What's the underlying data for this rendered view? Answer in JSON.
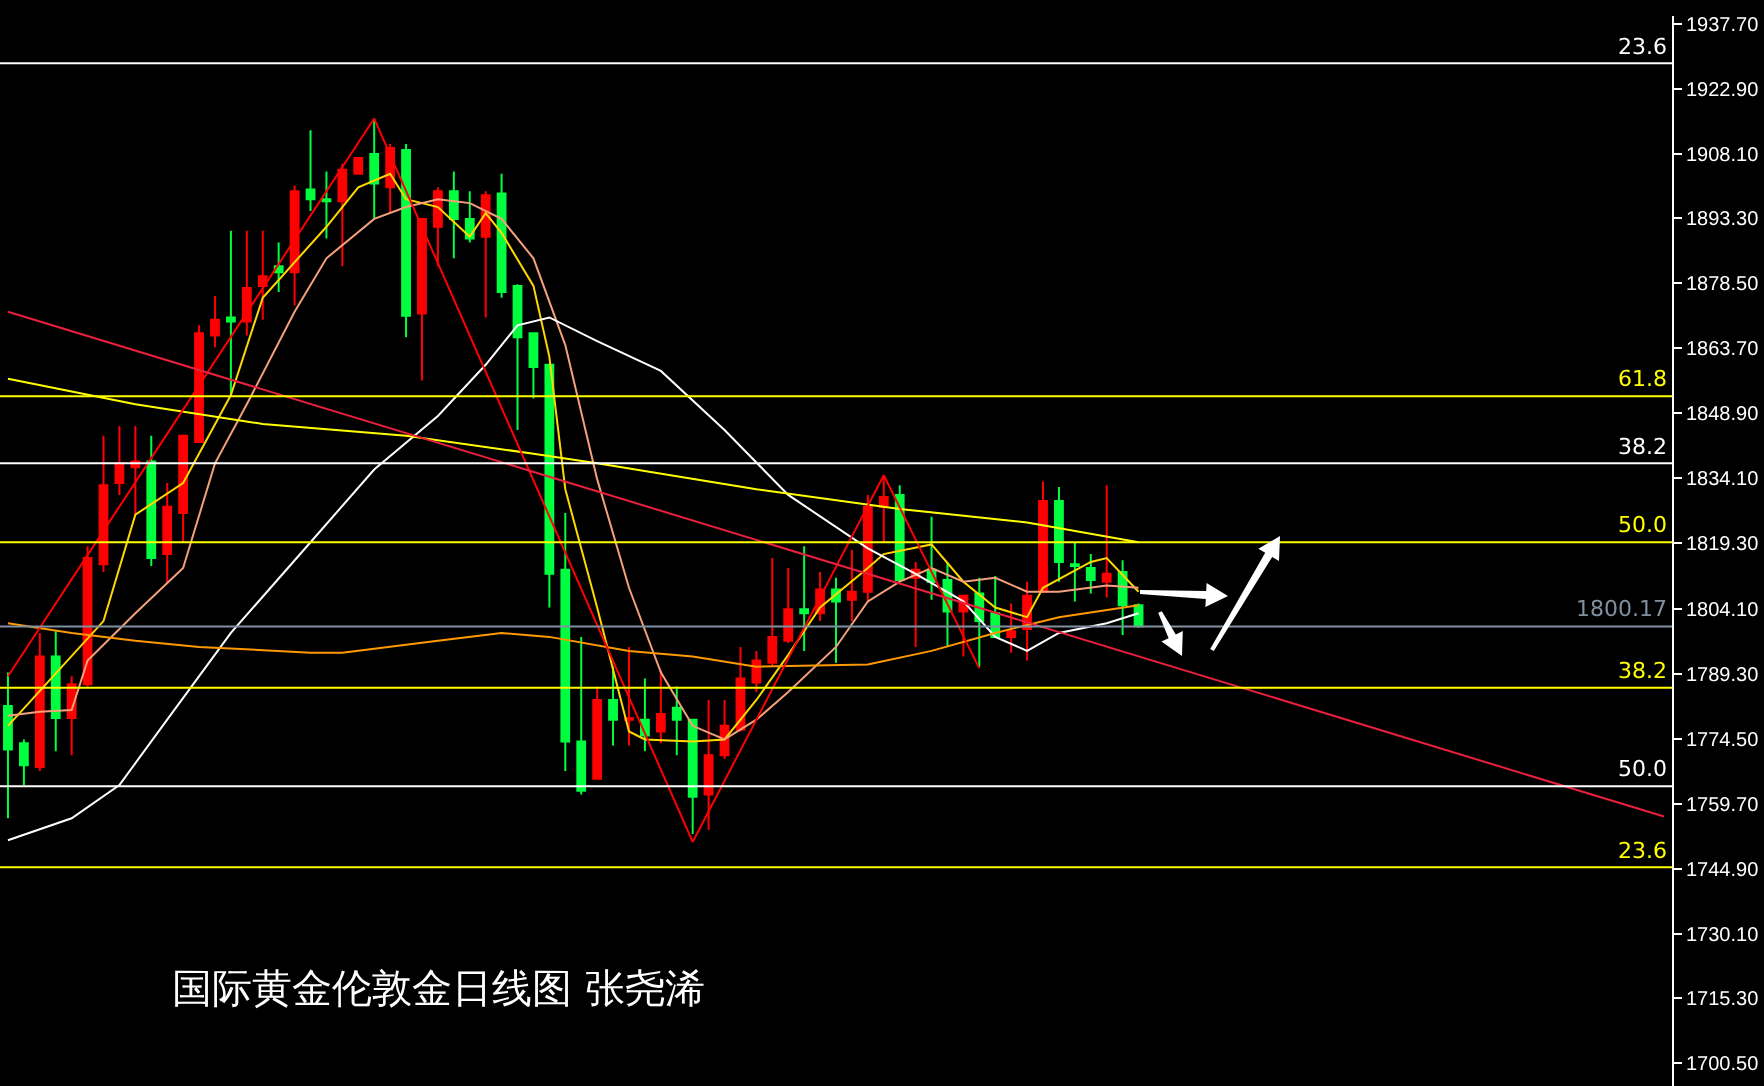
{
  "chart_data": {
    "type": "candlestick",
    "title": "国际黄金伦敦金日线图 张尧浠",
    "categories": [
      null,
      null,
      null,
      null,
      null,
      null,
      null,
      null,
      null,
      null,
      null,
      null,
      null,
      null,
      null,
      null,
      null,
      null,
      null,
      null,
      null,
      null,
      null,
      null,
      null,
      null,
      null,
      null,
      null,
      null,
      null,
      null,
      null,
      null,
      null,
      null,
      null,
      null,
      null,
      null,
      null,
      null,
      null,
      null,
      null,
      null,
      null,
      null,
      null,
      null,
      null,
      null,
      null,
      null,
      null,
      null,
      null,
      null,
      null,
      null,
      null,
      null,
      null,
      null,
      null,
      null,
      null,
      null,
      null,
      null,
      null,
      null,
      null,
      null,
      null,
      null,
      null,
      null,
      null,
      null,
      null,
      null,
      null,
      null,
      null,
      null,
      null,
      null,
      null,
      null,
      null,
      null,
      null,
      null,
      null,
      null,
      null,
      null,
      null,
      null,
      null,
      null,
      null,
      null,
      null
    ],
    "ohlc": [
      [
        1782.0,
        1789.7,
        1756.4,
        1772.1
      ],
      [
        1773.5,
        1774.4,
        1764.0,
        1768.5
      ],
      [
        1768.1,
        1798.7,
        1767.2,
        1793.3
      ],
      [
        1793.3,
        1799.1,
        1771.7,
        1779.3
      ],
      [
        1779.3,
        1788.8,
        1770.8,
        1787.0
      ],
      [
        1787.0,
        1818.5,
        1786.5,
        1815.8
      ],
      [
        1814.4,
        1843.7,
        1812.6,
        1832.4
      ],
      [
        1832.9,
        1845.9,
        1830.2,
        1837.4
      ],
      [
        1836.5,
        1845.9,
        1825.6,
        1837.8
      ],
      [
        1837.8,
        1843.7,
        1814.0,
        1815.8
      ],
      [
        1816.7,
        1832.9,
        1809.9,
        1827.5
      ],
      [
        1826.1,
        1843.7,
        1819.4,
        1843.7
      ],
      [
        1842.3,
        1868.9,
        1842.3,
        1867.1
      ],
      [
        1866.6,
        1875.6,
        1863.9,
        1870.2
      ],
      [
        1870.7,
        1890.5,
        1852.7,
        1869.8
      ],
      [
        1869.8,
        1890.5,
        1866.6,
        1877.4
      ],
      [
        1877.9,
        1890.5,
        1870.2,
        1880.1
      ],
      [
        1882.4,
        1887.8,
        1876.5,
        1881.0
      ],
      [
        1881.0,
        1900.8,
        1873.4,
        1899.5
      ],
      [
        1899.9,
        1913.4,
        1895.0,
        1897.7
      ],
      [
        1897.7,
        1904.0,
        1888.7,
        1897.2
      ],
      [
        1897.2,
        1905.8,
        1882.4,
        1904.4
      ],
      [
        1903.5,
        1907.1,
        1903.5,
        1907.1
      ],
      [
        1908.0,
        1916.1,
        1893.2,
        1901.3
      ],
      [
        1900.4,
        1910.3,
        1894.5,
        1909.4
      ],
      [
        1908.9,
        1910.3,
        1866.2,
        1871.1
      ],
      [
        1871.6,
        1893.2,
        1856.3,
        1893.2
      ],
      [
        1891.4,
        1900.4,
        1882.4,
        1899.5
      ],
      [
        1899.5,
        1904.0,
        1884.2,
        1893.2
      ],
      [
        1893.2,
        1899.5,
        1887.8,
        1888.7
      ],
      [
        1889.1,
        1899.5,
        1870.7,
        1898.6
      ],
      [
        1899.0,
        1903.5,
        1875.2,
        1876.5
      ],
      [
        1877.9,
        1878.3,
        1845.0,
        1866.2
      ],
      [
        1867.1,
        1867.1,
        1852.2,
        1859.4
      ],
      [
        1859.9,
        1859.9,
        1804.5,
        1812.2
      ],
      [
        1813.1,
        1826.1,
        1767.2,
        1773.9
      ],
      [
        1773.9,
        1797.8,
        1761.8,
        1762.7
      ],
      [
        1765.4,
        1786.5,
        1765.4,
        1783.4
      ],
      [
        1783.4,
        1791.0,
        1773.0,
        1778.9
      ],
      [
        1778.9,
        1795.5,
        1773.0,
        1779.3
      ],
      [
        1778.9,
        1788.3,
        1771.7,
        1775.3
      ],
      [
        1776.2,
        1790.1,
        1773.5,
        1780.2
      ],
      [
        1781.6,
        1786.5,
        1770.8,
        1778.9
      ],
      [
        1778.9,
        1778.9,
        1752.8,
        1761.3
      ],
      [
        1761.8,
        1783.4,
        1753.7,
        1770.8
      ],
      [
        1770.8,
        1783.4,
        1769.9,
        1777.5
      ],
      [
        1776.6,
        1795.5,
        1776.2,
        1788.3
      ],
      [
        1787.4,
        1794.6,
        1785.2,
        1792.4
      ],
      [
        1791.9,
        1815.8,
        1791.0,
        1797.8
      ],
      [
        1796.9,
        1813.5,
        1796.4,
        1804.1
      ],
      [
        1804.1,
        1818.5,
        1794.6,
        1803.2
      ],
      [
        1803.2,
        1812.6,
        1801.4,
        1808.6
      ],
      [
        1808.6,
        1811.3,
        1791.9,
        1805.9
      ],
      [
        1806.3,
        1817.6,
        1801.4,
        1808.1
      ],
      [
        1808.1,
        1830.2,
        1805.9,
        1827.5
      ],
      [
        1827.5,
        1834.7,
        1819.4,
        1829.7
      ],
      [
        1830.2,
        1832.4,
        1810.8,
        1810.8
      ],
      [
        1811.3,
        1814.9,
        1795.5,
        1813.1
      ],
      [
        1813.1,
        1825.2,
        1806.3,
        1810.4
      ],
      [
        1810.8,
        1814.9,
        1795.5,
        1803.6
      ],
      [
        1803.6,
        1807.2,
        1793.3,
        1807.2
      ],
      [
        1807.7,
        1811.3,
        1791.0,
        1801.4
      ],
      [
        1803.2,
        1811.7,
        1797.8,
        1797.8
      ],
      [
        1797.8,
        1805.4,
        1794.2,
        1799.1
      ],
      [
        1799.6,
        1810.4,
        1792.4,
        1807.2
      ],
      [
        1808.1,
        1833.3,
        1808.1,
        1828.8
      ],
      [
        1828.8,
        1832.0,
        1810.4,
        1814.9
      ],
      [
        1814.4,
        1819.4,
        1805.9,
        1814.0
      ],
      [
        1813.5,
        1816.7,
        1807.7,
        1810.8
      ],
      [
        1810.4,
        1832.4,
        1806.8,
        1812.2
      ],
      [
        1812.6,
        1815.3,
        1798.2,
        1805.0
      ],
      [
        1805.0,
        1805.4,
        1799.9,
        1800.2
      ],
      null,
      null,
      null,
      null,
      null,
      null,
      null,
      null,
      null,
      null,
      null,
      null,
      null,
      null,
      null,
      null,
      null,
      null,
      null,
      null,
      null,
      null,
      null,
      null,
      null,
      null,
      null,
      null,
      null,
      null,
      null,
      null,
      null
    ],
    "colors": [
      "#00ff40",
      "#00ff40",
      "#ff0000",
      "#00ff40",
      "#ff0000",
      "#ff0000",
      "#ff0000",
      "#ff0000",
      "#ff0000",
      "#00ff40",
      "#ff0000",
      "#ff0000",
      "#ff0000",
      "#ff0000",
      "#00ff40",
      "#ff0000",
      "#ff0000",
      "#00ff40",
      "#ff0000",
      "#00ff40",
      "#00ff40",
      "#ff0000",
      "#ff0000",
      "#00ff40",
      "#ff0000",
      "#00ff40",
      "#ff0000",
      "#ff0000",
      "#00ff40",
      "#00ff40",
      "#ff0000",
      "#00ff40",
      "#00ff40",
      "#00ff40",
      "#00ff40",
      "#00ff40",
      "#00ff40",
      "#ff0000",
      "#00ff40",
      "#ff0000",
      "#00ff40",
      "#ff0000",
      "#00ff40",
      "#00ff40",
      "#ff0000",
      "#ff0000",
      "#ff0000",
      "#ff0000",
      "#ff0000",
      "#ff0000",
      "#00ff40",
      "#ff0000",
      "#00ff40",
      "#ff0000",
      "#ff0000",
      "#ff0000",
      "#00ff40",
      "#ff0000",
      "#00ff40",
      "#00ff40",
      "#ff0000",
      "#00ff40",
      "#00ff40",
      "#ff0000",
      "#ff0000",
      "#ff0000",
      "#00ff40",
      "#00ff40",
      "#00ff40",
      "#ff0000",
      "#00ff40",
      "#00ff40",
      null,
      null,
      null,
      null,
      null,
      null,
      null,
      null,
      null,
      null,
      null,
      null,
      null,
      null,
      null,
      null,
      null,
      null,
      null,
      null,
      null,
      null,
      null,
      null,
      null,
      null,
      null,
      null,
      null,
      null,
      null,
      null,
      null
    ],
    "series": [
      {
        "type": "line",
        "color": "#ffd700",
        "values": [
          1777.5,
          null,
          null,
          null,
          null,
          null,
          1801.4,
          null,
          1825.7,
          null,
          null,
          1832.9,
          null,
          null,
          1853.0,
          null,
          1875.2,
          null,
          null,
          null,
          1891.4,
          null,
          1900.4,
          null,
          1903.5,
          1897.7,
          null,
          1895.9,
          null,
          1889.1,
          1894.5,
          1890.0,
          null,
          1877.9,
          1861.7,
          1831.5,
          null,
          1804.5,
          null,
          1776.2,
          1774.4,
          null,
          null,
          1773.9,
          null,
          1774.4,
          null,
          1783.4,
          null,
          1793.7,
          null,
          1804.5,
          null,
          null,
          1813.5,
          1816.7,
          null,
          null,
          1818.9,
          null,
          1810.4,
          null,
          1804.5,
          null,
          1802.3,
          1809.0,
          null,
          null,
          1814.9,
          1815.8,
          null,
          1808.1,
          null,
          null,
          null,
          null,
          null,
          null,
          null,
          null,
          null,
          null,
          null,
          null,
          null,
          null,
          null,
          null,
          null,
          null,
          null,
          null,
          null,
          null,
          null,
          null,
          null,
          null,
          null,
          null,
          null,
          null,
          null,
          null,
          null
        ]
      },
      {
        "type": "line",
        "color": "#f4a07a",
        "values": [
          1779.8,
          null,
          1780.7,
          null,
          1781.1,
          1792.4,
          null,
          null,
          1803.2,
          null,
          null,
          1813.5,
          null,
          1837.4,
          null,
          1850.9,
          null,
          null,
          1872.0,
          null,
          1884.2,
          null,
          null,
          1893.2,
          null,
          1895.9,
          null,
          1897.7,
          null,
          1896.8,
          null,
          1893.2,
          null,
          1884.2,
          null,
          1864.4,
          null,
          1833.8,
          null,
          1809.0,
          null,
          1789.7,
          null,
          1777.5,
          null,
          1774.4,
          null,
          1778.9,
          null,
          1785.2,
          null,
          null,
          1795.5,
          null,
          1805.9,
          null,
          1810.4,
          null,
          1813.5,
          null,
          1810.4,
          null,
          1811.3,
          null,
          1808.1,
          null,
          1808.1,
          null,
          null,
          1809.5,
          null,
          1809.0,
          null,
          null,
          null,
          null,
          null,
          null,
          null,
          null,
          null,
          null,
          null,
          null,
          null,
          null,
          null,
          null,
          null,
          null,
          null,
          null,
          null,
          null,
          null,
          null,
          null,
          null,
          null,
          null,
          null,
          null,
          null,
          null,
          null
        ]
      },
      {
        "type": "line",
        "color": "#ffffff",
        "values": [
          1751.4,
          null,
          null,
          null,
          1756.4,
          null,
          null,
          1764.0,
          null,
          null,
          1778.9,
          null,
          null,
          null,
          1798.7,
          null,
          null,
          null,
          null,
          1819.4,
          null,
          null,
          null,
          1836.0,
          null,
          null,
          null,
          1848.2,
          null,
          null,
          1859.9,
          null,
          1868.9,
          null,
          1870.7,
          null,
          null,
          1865.3,
          null,
          null,
          null,
          1858.5,
          null,
          null,
          null,
          1845.0,
          null,
          null,
          null,
          1830.2,
          null,
          null,
          null,
          null,
          1818.0,
          null,
          null,
          1812.2,
          null,
          null,
          1805.9,
          null,
          1797.8,
          null,
          1794.6,
          null,
          1798.7,
          null,
          null,
          1800.9,
          null,
          1803.2,
          null,
          null,
          null,
          null,
          null,
          null,
          null,
          null,
          null,
          null,
          null,
          null,
          null,
          null,
          null,
          null,
          null,
          null,
          null,
          null,
          null,
          null,
          null,
          null,
          null,
          null,
          null,
          null,
          null,
          null,
          null,
          null,
          null
        ]
      },
      {
        "type": "line",
        "color": "#ff9900",
        "values": [
          1800.9,
          null,
          null,
          null,
          1798.7,
          null,
          null,
          null,
          1796.9,
          null,
          null,
          null,
          1795.5,
          null,
          null,
          null,
          null,
          null,
          null,
          1794.2,
          null,
          1794.2,
          null,
          null,
          null,
          null,
          null,
          1796.9,
          null,
          null,
          null,
          1798.7,
          null,
          null,
          1797.8,
          null,
          null,
          null,
          null,
          1794.6,
          null,
          null,
          null,
          1793.3,
          null,
          null,
          null,
          1791.0,
          null,
          null,
          null,
          null,
          null,
          null,
          1791.5,
          null,
          null,
          null,
          1794.6,
          null,
          null,
          null,
          1798.7,
          null,
          null,
          null,
          1802.3,
          null,
          null,
          null,
          null,
          1805.0,
          null,
          null,
          null,
          null,
          null,
          null,
          null,
          null,
          null,
          null,
          null,
          null,
          null,
          null,
          null,
          null,
          null,
          null,
          null,
          null,
          null,
          null,
          null,
          null,
          null,
          null,
          null,
          null,
          null,
          null,
          null,
          null,
          null
        ]
      },
      {
        "type": "line",
        "color": "#ffff00",
        "values": [
          1856.7,
          null,
          null,
          null,
          null,
          null,
          null,
          null,
          1850.9,
          null,
          null,
          null,
          null,
          null,
          null,
          null,
          1846.4,
          null,
          null,
          null,
          null,
          null,
          null,
          null,
          null,
          1843.7,
          null,
          null,
          null,
          null,
          null,
          null,
          null,
          1839.6,
          null,
          null,
          null,
          1837.4,
          null,
          null,
          null,
          null,
          null,
          null,
          null,
          null,
          null,
          1831.5,
          null,
          null,
          null,
          null,
          null,
          null,
          null,
          null,
          1827.0,
          null,
          null,
          null,
          null,
          null,
          null,
          null,
          1823.9,
          null,
          null,
          null,
          null,
          null,
          null,
          1819.4,
          null,
          null,
          null,
          null,
          null,
          null,
          null,
          null,
          null,
          null,
          null,
          null,
          null,
          null,
          null,
          null,
          null,
          null,
          null,
          null,
          null,
          null,
          null,
          null,
          null,
          null,
          null,
          null,
          null,
          null,
          null,
          null,
          null
        ]
      },
      {
        "type": "line",
        "color": "#ff0000",
        "values": [
          1788.8,
          null,
          null,
          null,
          null,
          null,
          null,
          null,
          null,
          null,
          null,
          null,
          null,
          null,
          null,
          null,
          null,
          null,
          null,
          null,
          null,
          null,
          null,
          1916.1,
          null,
          null,
          null,
          null,
          null,
          null,
          null,
          null,
          null,
          null,
          null,
          null,
          null,
          null,
          null,
          null,
          null,
          null,
          null,
          1751.0,
          null,
          null,
          null,
          null,
          null,
          null,
          null,
          null,
          null,
          null,
          null,
          1834.7,
          null,
          null,
          null,
          null,
          null,
          1790.6,
          null,
          null,
          null,
          null,
          null,
          null,
          null,
          null,
          null,
          null,
          null,
          null,
          null,
          null,
          null,
          null,
          null,
          null,
          null,
          null,
          null,
          null,
          null,
          null,
          null,
          null,
          null,
          null,
          null,
          null,
          null,
          null,
          null,
          null,
          null,
          null,
          null,
          null,
          null,
          null,
          null,
          null,
          null
        ]
      },
      {
        "type": "line",
        "color": "#e8203c",
        "values": [
          1872.0,
          null,
          null,
          null,
          null,
          null,
          null,
          null,
          null,
          null,
          null,
          null,
          null,
          null,
          null,
          null,
          null,
          null,
          null,
          null,
          null,
          null,
          null,
          null,
          null,
          null,
          null,
          null,
          null,
          null,
          null,
          null,
          null,
          null,
          null,
          null,
          null,
          null,
          null,
          null,
          null,
          null,
          null,
          null,
          null,
          null,
          null,
          null,
          null,
          null,
          null,
          null,
          null,
          null,
          null,
          null,
          null,
          null,
          null,
          null,
          null,
          null,
          null,
          null,
          null,
          null,
          null,
          null,
          null,
          null,
          null,
          null,
          null,
          null,
          null,
          null,
          null,
          null,
          null,
          null,
          null,
          null,
          null,
          null,
          null,
          null,
          null,
          null,
          null,
          null,
          null,
          null,
          null,
          null,
          null,
          null,
          null,
          null,
          null,
          null,
          null,
          null,
          null,
          null,
          1756.8
        ]
      }
    ],
    "ylim": [
      1695.3,
      1939.5
    ],
    "yticks": [
      {
        "value": 1937.7,
        "label": "1937.70"
      },
      {
        "value": 1922.9,
        "label": "1922.90"
      },
      {
        "value": 1908.1,
        "label": "1908.10"
      },
      {
        "value": 1893.3,
        "label": "1893.30"
      },
      {
        "value": 1878.5,
        "label": "1878.50"
      },
      {
        "value": 1863.7,
        "label": "1863.70"
      },
      {
        "value": 1848.9,
        "label": "1848.90"
      },
      {
        "value": 1834.1,
        "label": "1834.10"
      },
      {
        "value": 1819.3,
        "label": "1819.30"
      },
      {
        "value": 1804.1,
        "label": "1804.10"
      },
      {
        "value": 1789.3,
        "label": "1789.30"
      },
      {
        "value": 1774.5,
        "label": "1774.50"
      },
      {
        "value": 1759.7,
        "label": "1759.70"
      },
      {
        "value": 1744.9,
        "label": "1744.90"
      },
      {
        "value": 1730.1,
        "label": "1730.10"
      },
      {
        "value": 1715.3,
        "label": "1715.30"
      },
      {
        "value": 1700.5,
        "label": "1700.50"
      }
    ],
    "ref_lines": [
      {
        "axis": "y",
        "value": 1928.7,
        "color": "#ffffff"
      },
      {
        "axis": "y",
        "value": 1852.7,
        "color": "#ffff00"
      },
      {
        "axis": "y",
        "value": 1837.4,
        "color": "#ffffff"
      },
      {
        "axis": "y",
        "value": 1819.4,
        "color": "#ffff00"
      },
      {
        "axis": "y",
        "value": 1800.17,
        "label": "1800.17",
        "color": "#8090a0"
      },
      {
        "axis": "y",
        "value": 1786.2,
        "color": "#ffff00"
      },
      {
        "axis": "y",
        "value": 1763.7,
        "color": "#ffffff"
      },
      {
        "axis": "y",
        "value": 1745.2,
        "color": "#ffff00"
      }
    ],
    "annotations": [
      {
        "text": "23.6",
        "y": 1928.7
      },
      {
        "text": "61.8",
        "y": 1852.7
      },
      {
        "text": "38.2",
        "y": 1837.4
      },
      {
        "text": "50.0",
        "y": 1819.4
      },
      {
        "text": "38.2",
        "y": 1786.2
      },
      {
        "text": "50.0",
        "y": 1763.7
      },
      {
        "text": "23.6",
        "y": 1745.2
      }
    ],
    "tick_labels": "y"
  }
}
